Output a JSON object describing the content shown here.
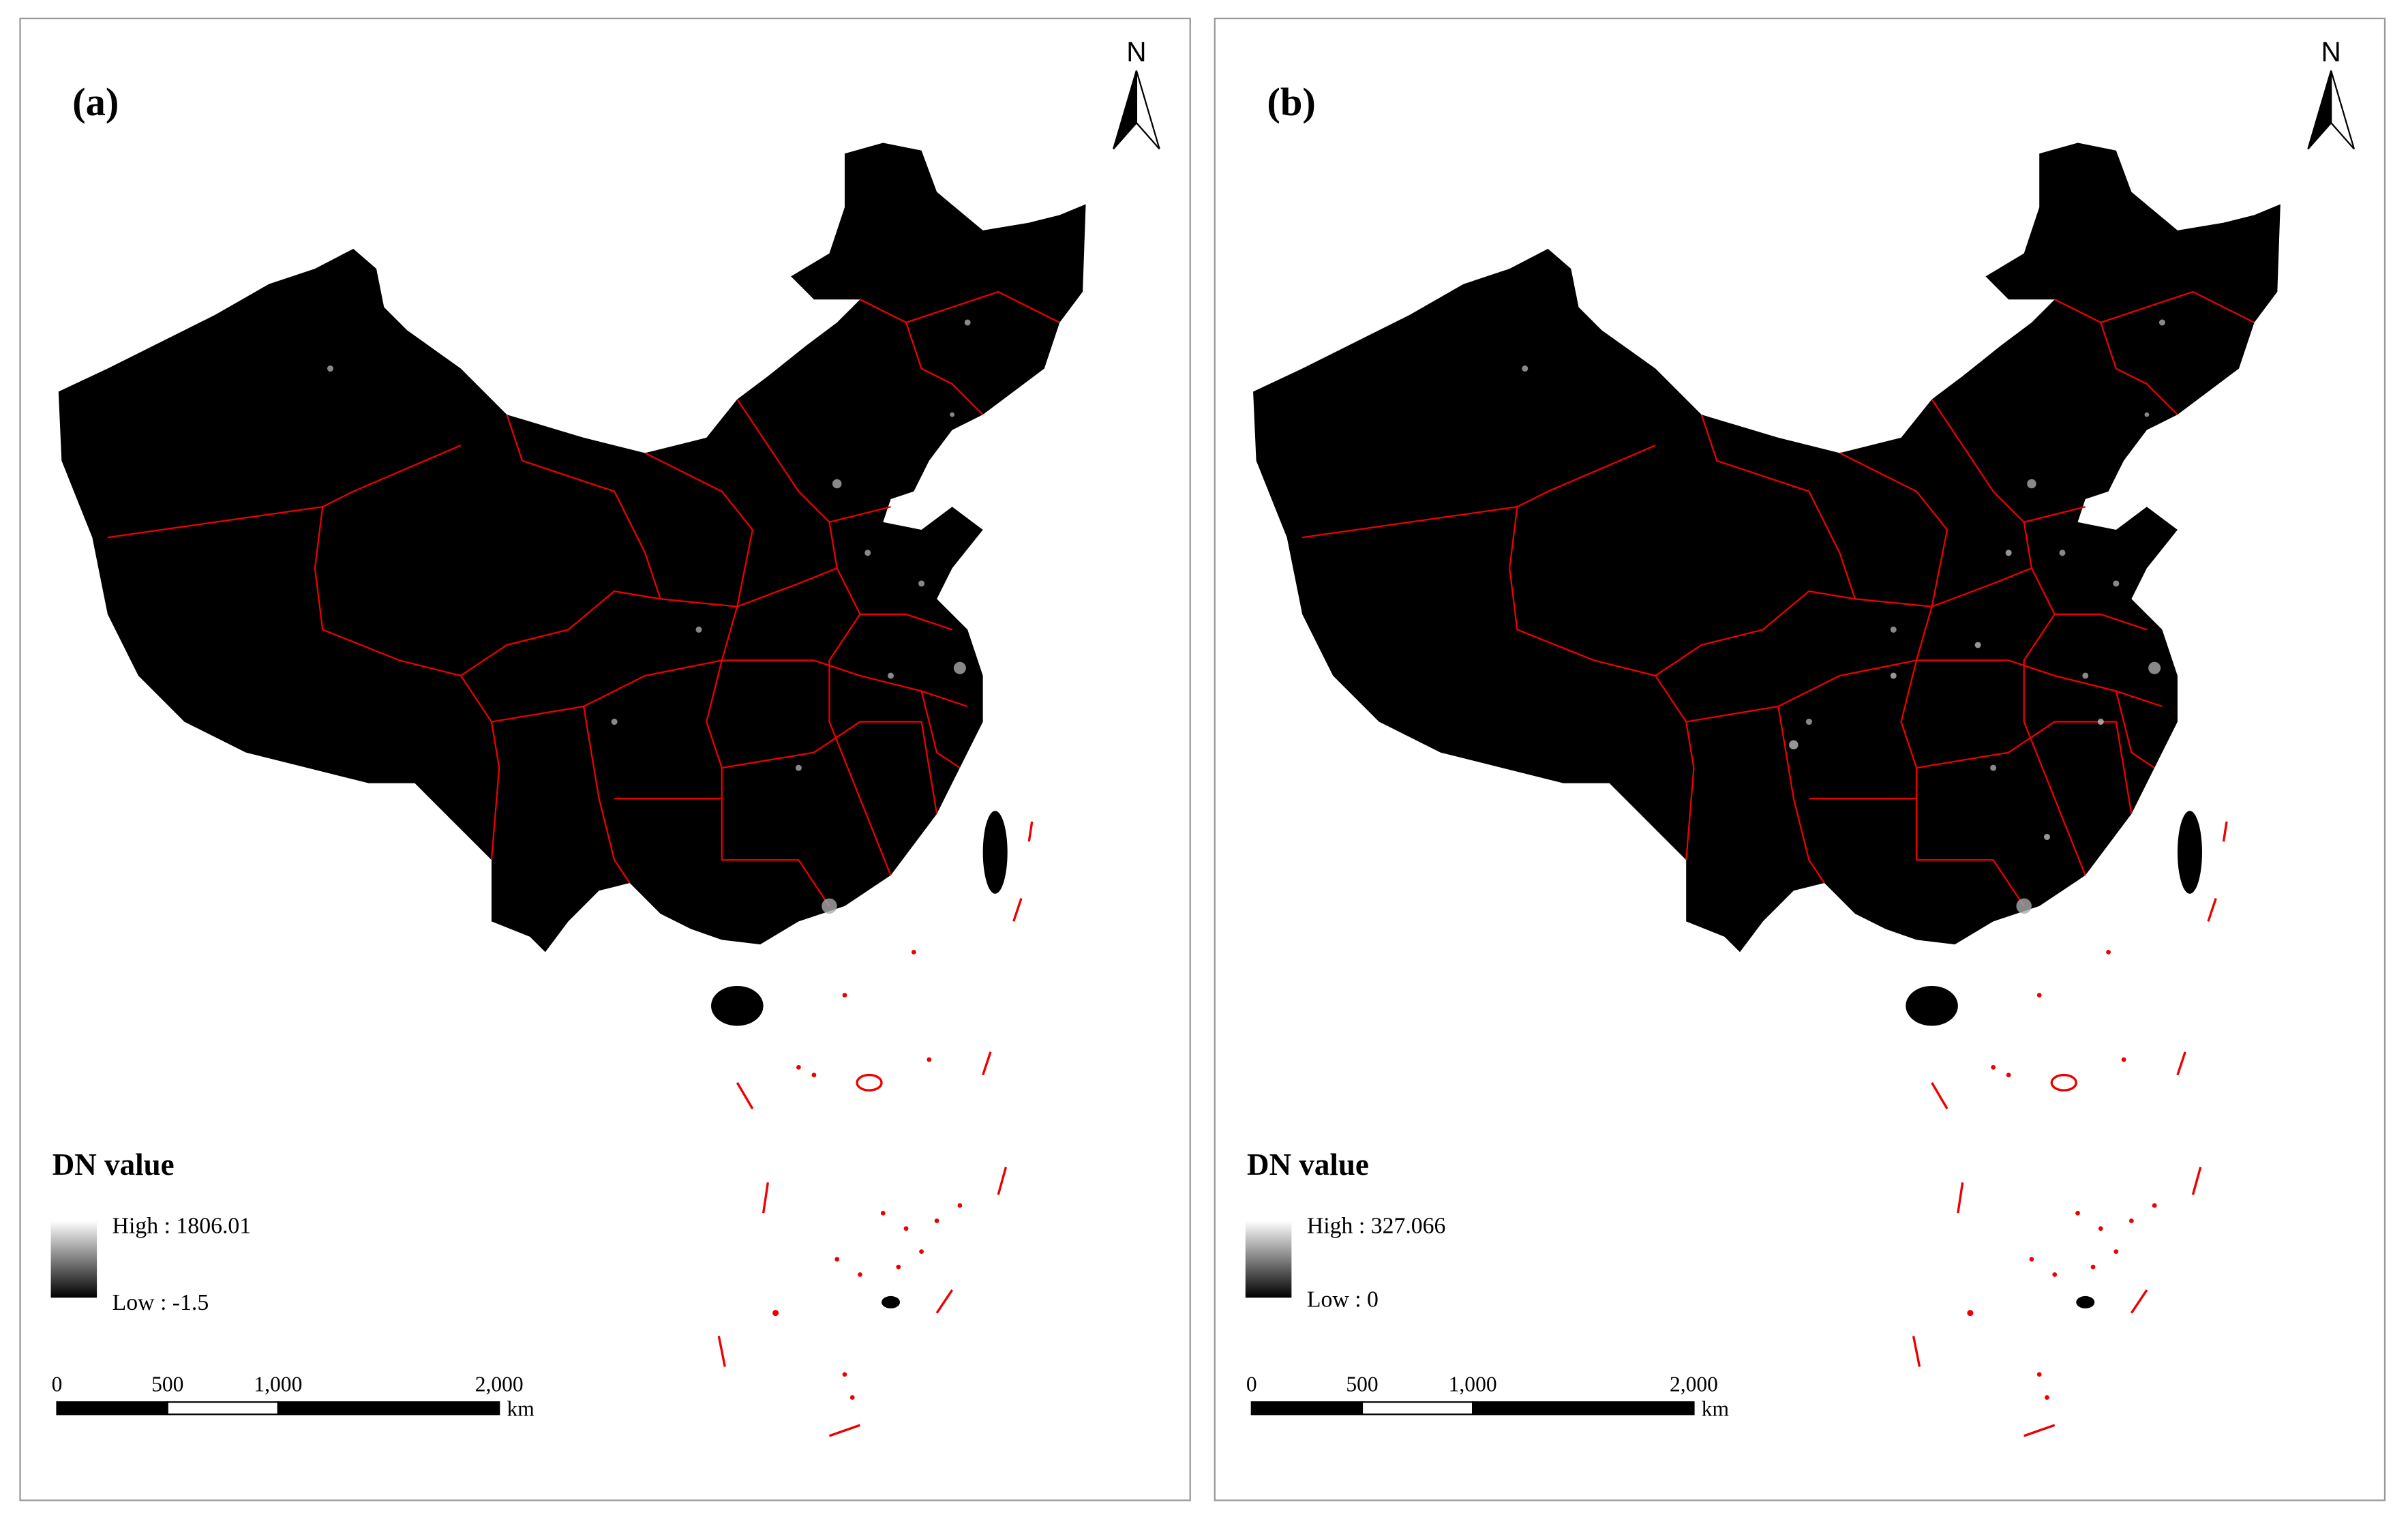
{
  "panels": [
    {
      "label": "(a)",
      "north": "N",
      "legend": {
        "title": "DN value",
        "high": "High : 1806.01",
        "low": "Low : -1.5"
      },
      "scale": {
        "labels": [
          "0",
          "500",
          "1,000",
          "2,000"
        ],
        "unit": "km"
      }
    },
    {
      "label": "(b)",
      "north": "N",
      "legend": {
        "title": "DN value",
        "high": "High : 327.066",
        "low": "Low : 0"
      },
      "scale": {
        "labels": [
          "0",
          "500",
          "1,000",
          "2,000"
        ],
        "unit": "km"
      }
    }
  ]
}
